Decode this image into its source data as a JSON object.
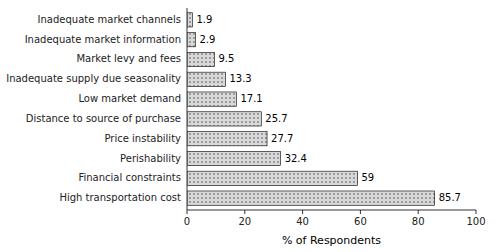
{
  "chart_data": {
    "type": "bar",
    "orientation": "horizontal",
    "categories": [
      "High transportation cost",
      "Financial constraints",
      "Perishability",
      "Price instability",
      "Distance to source of purchase",
      "Low market demand",
      "Inadequate supply due seasonality",
      "Market levy and fees",
      "Inadequate market information",
      "Inadequate market channels"
    ],
    "values": [
      85.7,
      59,
      32.4,
      27.7,
      25.7,
      17.1,
      13.3,
      9.5,
      2.9,
      1.9
    ],
    "color": "#d8d8d8",
    "x_label": "% of Respondents",
    "xlim": [
      0,
      100
    ],
    "xticks": [
      0,
      20,
      40,
      60,
      80,
      100
    ],
    "data_labels": true,
    "grid": false
  }
}
